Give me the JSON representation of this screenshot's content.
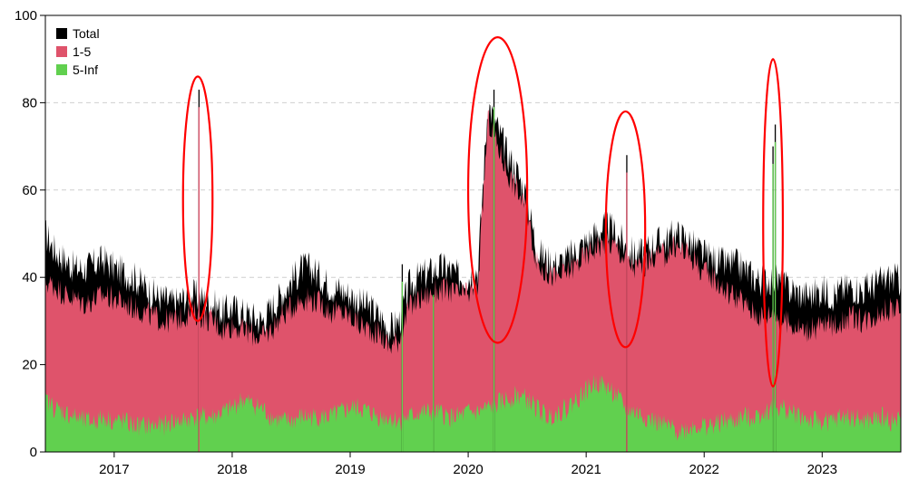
{
  "chart_data": {
    "type": "area",
    "title": "",
    "xlabel": "",
    "ylabel": "",
    "ylim": [
      0,
      100
    ],
    "xlim": [
      "2016-06",
      "2023-09"
    ],
    "grid": "horizontal-dashed",
    "legend_position": "top-left",
    "y_ticks": [
      "0",
      "20",
      "40",
      "60",
      "80",
      "100"
    ],
    "x_ticks": [
      {
        "label": "2017",
        "date": "2017-01"
      },
      {
        "label": "2018",
        "date": "2018-01"
      },
      {
        "label": "2019",
        "date": "2019-01"
      },
      {
        "label": "2020",
        "date": "2020-01"
      },
      {
        "label": "2021",
        "date": "2021-01"
      },
      {
        "label": "2022",
        "date": "2022-01"
      },
      {
        "label": "2023",
        "date": "2023-01"
      }
    ],
    "x": [
      "2016-06",
      "2016-07",
      "2016-08",
      "2016-09",
      "2016-10",
      "2016-11",
      "2016-12",
      "2017-01",
      "2017-02",
      "2017-03",
      "2017-04",
      "2017-05",
      "2017-06",
      "2017-07",
      "2017-08",
      "2017-09",
      "2017-10",
      "2017-11",
      "2017-12",
      "2018-01",
      "2018-02",
      "2018-03",
      "2018-04",
      "2018-05",
      "2018-06",
      "2018-07",
      "2018-08",
      "2018-09",
      "2018-10",
      "2018-11",
      "2018-12",
      "2019-01",
      "2019-02",
      "2019-03",
      "2019-04",
      "2019-05",
      "2019-06",
      "2019-07",
      "2019-08",
      "2019-09",
      "2019-10",
      "2019-11",
      "2019-12",
      "2020-01",
      "2020-02",
      "2020-03",
      "2020-04",
      "2020-05",
      "2020-06",
      "2020-07",
      "2020-08",
      "2020-09",
      "2020-10",
      "2020-11",
      "2020-12",
      "2021-01",
      "2021-02",
      "2021-03",
      "2021-04",
      "2021-05",
      "2021-06",
      "2021-07",
      "2021-08",
      "2021-09",
      "2021-10",
      "2021-11",
      "2021-12",
      "2022-01",
      "2022-02",
      "2022-03",
      "2022-04",
      "2022-05",
      "2022-06",
      "2022-07",
      "2022-08",
      "2022-09",
      "2022-10",
      "2022-11",
      "2022-12",
      "2023-01",
      "2023-02",
      "2023-03",
      "2023-04",
      "2023-05",
      "2023-06",
      "2023-07",
      "2023-08",
      "2023-09"
    ],
    "series": [
      {
        "name": "Total",
        "color": "#000000",
        "values": [
          50,
          46,
          44,
          42,
          42,
          43,
          44,
          42,
          41,
          40,
          38,
          36,
          35,
          34,
          35,
          36,
          35,
          34,
          32,
          33,
          32,
          31,
          30,
          33,
          36,
          39,
          42,
          42,
          40,
          38,
          37,
          36,
          34,
          33,
          31,
          28,
          30,
          38,
          40,
          41,
          42,
          42,
          40,
          40,
          42,
          80,
          74,
          68,
          64,
          58,
          46,
          44,
          43,
          44,
          46,
          48,
          50,
          52,
          50,
          47,
          45,
          46,
          48,
          48,
          50,
          49,
          47,
          45,
          44,
          43,
          43,
          42,
          40,
          39,
          40,
          38,
          37,
          36,
          36,
          37,
          36,
          37,
          38,
          37,
          38,
          39,
          40,
          39
        ]
      },
      {
        "name": "1-5",
        "color": "#df536b",
        "values": [
          39,
          38,
          36,
          35,
          34,
          35,
          36,
          35,
          34,
          33,
          32,
          31,
          30,
          30,
          31,
          32,
          31,
          30,
          28,
          29,
          28,
          27,
          26,
          28,
          31,
          33,
          35,
          35,
          34,
          32,
          32,
          31,
          29,
          28,
          27,
          24,
          26,
          33,
          35,
          36,
          37,
          37,
          36,
          36,
          38,
          76,
          70,
          64,
          60,
          55,
          43,
          41,
          40,
          41,
          43,
          45,
          47,
          48,
          47,
          44,
          42,
          43,
          45,
          45,
          47,
          46,
          44,
          41,
          40,
          37,
          36,
          34,
          32,
          31,
          32,
          30,
          29,
          28,
          28,
          29,
          29,
          30,
          31,
          30,
          31,
          32,
          33,
          32
        ]
      },
      {
        "name": "5-Inf",
        "color": "#61d04f",
        "values": [
          12,
          10,
          9,
          8,
          7,
          7,
          8,
          7,
          7,
          6,
          6,
          6,
          6,
          7,
          7,
          8,
          8,
          8,
          9,
          10,
          12,
          11,
          10,
          8,
          7,
          7,
          8,
          8,
          8,
          8,
          9,
          10,
          10,
          9,
          8,
          8,
          7,
          8,
          9,
          9,
          9,
          8,
          8,
          9,
          9,
          10,
          11,
          12,
          13,
          12,
          10,
          8,
          9,
          10,
          12,
          14,
          16,
          15,
          13,
          10,
          9,
          8,
          7,
          6,
          5,
          5,
          6,
          6,
          6,
          7,
          7,
          8,
          8,
          9,
          10,
          10,
          9,
          8,
          7,
          7,
          7,
          8,
          8,
          7,
          7,
          8,
          7,
          7
        ]
      }
    ],
    "spikes": [
      {
        "date": "2017-09-20",
        "total": 83,
        "series": "1-5"
      },
      {
        "date": "2019-06-10",
        "total": 43,
        "series": "5-Inf"
      },
      {
        "date": "2019-09-15",
        "total": 40,
        "series": "5-Inf"
      },
      {
        "date": "2020-03-20",
        "total": 83,
        "series": "5-Inf"
      },
      {
        "date": "2021-05-05",
        "total": 68,
        "series": "1-5"
      },
      {
        "date": "2022-08-01",
        "total": 70,
        "series": "5-Inf"
      },
      {
        "date": "2022-08-08",
        "total": 75,
        "series": "5-Inf"
      }
    ],
    "annotations": [
      {
        "shape": "ellipse",
        "color": "#ff0000",
        "x_from": "2017-08",
        "x_to": "2017-11",
        "y_from": 30,
        "y_to": 86
      },
      {
        "shape": "ellipse",
        "color": "#ff0000",
        "x_from": "2020-01",
        "x_to": "2020-07",
        "y_from": 25,
        "y_to": 95
      },
      {
        "shape": "ellipse",
        "color": "#ff0000",
        "x_from": "2021-03",
        "x_to": "2021-07",
        "y_from": 24,
        "y_to": 78
      },
      {
        "shape": "ellipse",
        "color": "#ff0000",
        "x_from": "2022-07",
        "x_to": "2022-09",
        "y_from": 15,
        "y_to": 90
      }
    ]
  }
}
